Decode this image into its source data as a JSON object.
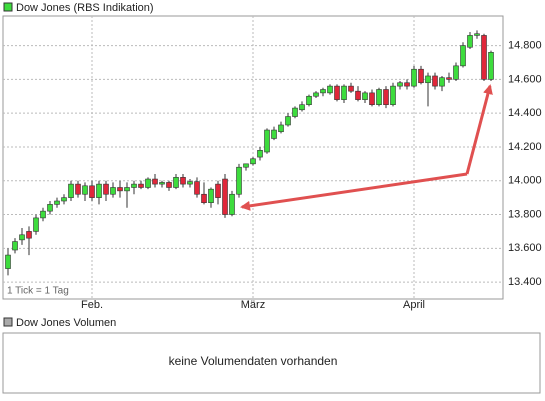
{
  "chart_data": {
    "type": "candlestick",
    "series": [
      {
        "name": "Dow Jones (RBS Indikation)",
        "up_color": "#3ddc3d",
        "down_color": "#e0263a",
        "open": [
          13480,
          13590,
          13650,
          13700,
          13700,
          13780,
          13820,
          13860,
          13880,
          13900,
          13980,
          13920,
          13970,
          13900,
          13980,
          13920,
          13960,
          13940,
          13960,
          13980,
          13960,
          14010,
          13980,
          13990,
          13960,
          14020,
          13980,
          13995,
          13920,
          13870,
          13980,
          14010,
          13800,
          13920,
          14080,
          14100,
          14140,
          14170,
          14250,
          14290,
          14330,
          14380,
          14420,
          14450,
          14500,
          14520,
          14520,
          14560,
          14480,
          14560,
          14530,
          14480,
          14520,
          14450,
          14540,
          14450,
          14560,
          14580,
          14560,
          14660,
          14580,
          14620,
          14560,
          14610,
          14600,
          14680,
          14790,
          14860,
          14860,
          14600
        ],
        "high": [
          13600,
          13660,
          13720,
          13730,
          13800,
          13840,
          13880,
          13900,
          13920,
          14000,
          14000,
          13990,
          14000,
          14000,
          14000,
          13990,
          14000,
          13990,
          14000,
          14000,
          14020,
          14040,
          14000,
          14000,
          14040,
          14040,
          14010,
          14020,
          13990,
          13960,
          14000,
          14040,
          13940,
          14100,
          14100,
          14140,
          14200,
          14310,
          14320,
          14350,
          14400,
          14440,
          14470,
          14510,
          14530,
          14550,
          14570,
          14570,
          14570,
          14580,
          14560,
          14530,
          14540,
          14550,
          14560,
          14580,
          14590,
          14600,
          14680,
          14680,
          14640,
          14640,
          14620,
          14640,
          14700,
          14820,
          14880,
          14890,
          14870,
          14770
        ],
        "low": [
          13440,
          13570,
          13620,
          13560,
          13680,
          13760,
          13800,
          13840,
          13860,
          13880,
          13900,
          13880,
          13880,
          13860,
          13880,
          13900,
          13900,
          13840,
          13920,
          13950,
          13950,
          13960,
          13960,
          13940,
          13950,
          13960,
          13960,
          13900,
          13860,
          13840,
          13860,
          13780,
          13790,
          13900,
          14060,
          14090,
          14120,
          14160,
          14240,
          14280,
          14320,
          14370,
          14410,
          14440,
          14490,
          14500,
          14510,
          14470,
          14460,
          14520,
          14470,
          14460,
          14440,
          14440,
          14430,
          14440,
          14540,
          14540,
          14550,
          14570,
          14440,
          14540,
          14530,
          14580,
          14590,
          14670,
          14780,
          14840,
          14590,
          14590
        ],
        "close": [
          13560,
          13640,
          13680,
          13660,
          13780,
          13820,
          13860,
          13880,
          13900,
          13980,
          13920,
          13970,
          13900,
          13980,
          13920,
          13960,
          13940,
          13960,
          13980,
          13960,
          14010,
          13980,
          13990,
          13960,
          14020,
          13980,
          13995,
          13920,
          13870,
          13950,
          13900,
          13800,
          13920,
          14080,
          14100,
          14130,
          14180,
          14300,
          14300,
          14330,
          14380,
          14430,
          14450,
          14500,
          14520,
          14540,
          14560,
          14480,
          14560,
          14530,
          14480,
          14520,
          14450,
          14540,
          14450,
          14560,
          14580,
          14560,
          14660,
          14580,
          14620,
          14560,
          14610,
          14600,
          14680,
          14800,
          14860,
          14870,
          14600,
          14760
        ]
      }
    ],
    "categories": [
      null,
      null,
      null,
      null,
      null,
      null,
      null,
      null,
      null,
      null,
      null,
      null,
      "Feb.",
      null,
      null,
      null,
      null,
      null,
      null,
      null,
      null,
      null,
      null,
      null,
      null,
      null,
      null,
      null,
      null,
      null,
      null,
      null,
      null,
      null,
      null,
      "März",
      null,
      null,
      null,
      null,
      null,
      null,
      null,
      null,
      null,
      null,
      null,
      null,
      null,
      null,
      null,
      null,
      null,
      null,
      null,
      null,
      null,
      null,
      "April",
      null,
      null,
      null,
      null,
      null,
      null,
      null,
      null,
      null,
      null,
      null
    ],
    "ylim": [
      13300,
      14975
    ],
    "yticks": [
      {
        "value": 13400,
        "label": "13.400"
      },
      {
        "value": 13600,
        "label": "13.600"
      },
      {
        "value": 13800,
        "label": "13.800"
      },
      {
        "value": 14000,
        "label": "14.000"
      },
      {
        "value": 14200,
        "label": "14.200"
      },
      {
        "value": 14400,
        "label": "14.400"
      },
      {
        "value": 14600,
        "label": "14.600"
      },
      {
        "value": 14800,
        "label": "14.800"
      }
    ],
    "grid": true,
    "annotation": "1 Tick = 1 Tag"
  },
  "volume_panel": {
    "legend": "Dow Jones Volumen",
    "message": "keine Volumendaten vorhanden"
  }
}
